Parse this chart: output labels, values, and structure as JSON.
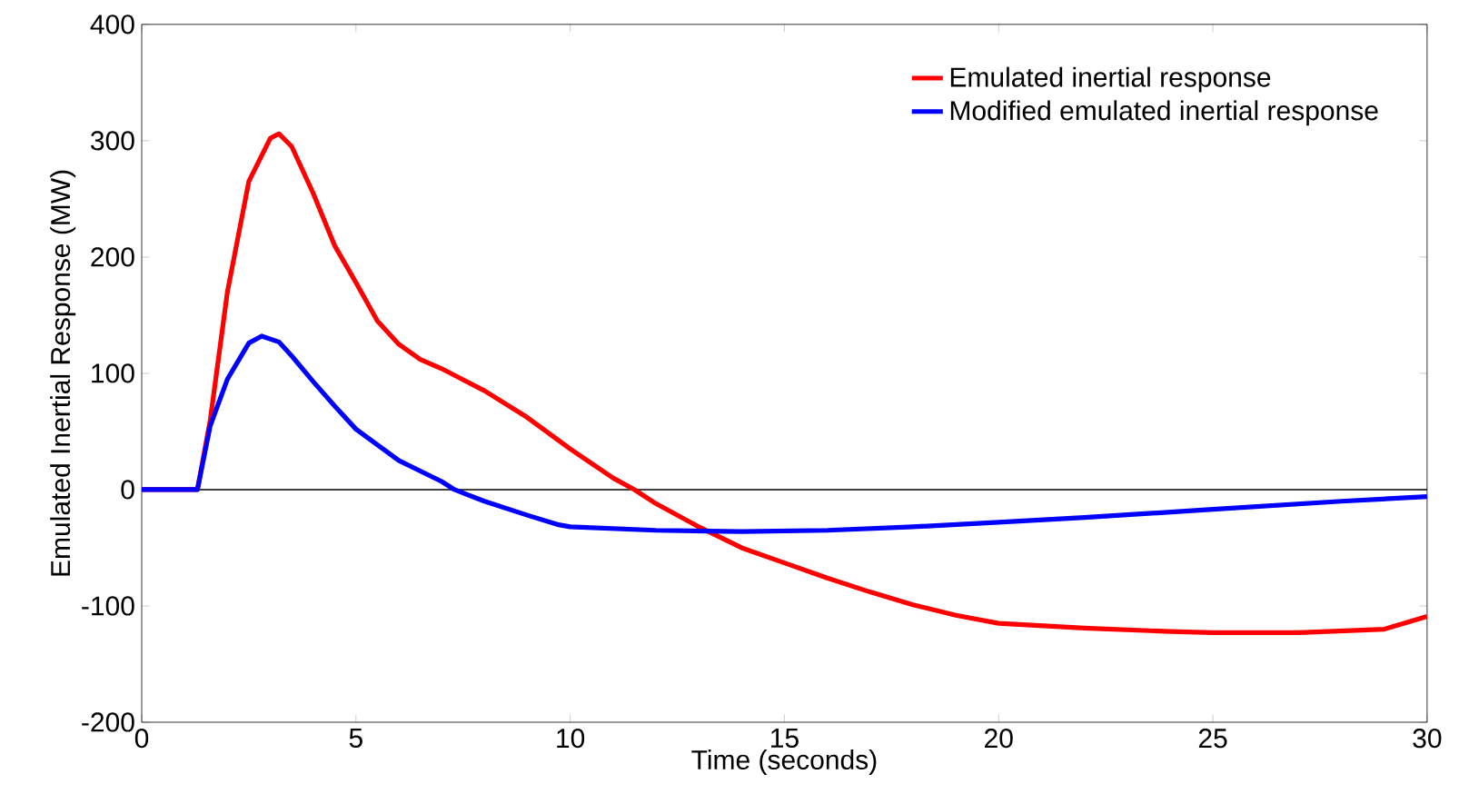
{
  "chart_data": {
    "type": "line",
    "xlabel": "Time (seconds)",
    "ylabel": "Emulated Inertial Response (MW)",
    "xlim": [
      0,
      30
    ],
    "ylim": [
      -200,
      400
    ],
    "xticks": [
      0,
      5,
      10,
      15,
      20,
      25,
      30
    ],
    "yticks": [
      -200,
      -100,
      0,
      100,
      200,
      300,
      400
    ],
    "grid": false,
    "legend": "top right",
    "line_style": "solid",
    "marker": "none",
    "ref_lines": [
      {
        "axis": "y",
        "value": 0,
        "color": "#000000"
      }
    ],
    "series": [
      {
        "name": "Emulated inertial response",
        "color": "#ff0000",
        "x": [
          0,
          1.3,
          1.6,
          2.0,
          2.5,
          3.0,
          3.2,
          3.5,
          4.0,
          4.5,
          5.0,
          5.5,
          6.0,
          6.5,
          7.0,
          8.0,
          9.0,
          10.0,
          11.0,
          11.5,
          12.0,
          13.0,
          14.0,
          15.0,
          16.0,
          17.0,
          18.0,
          19.0,
          20.0,
          22.0,
          24.0,
          25.0,
          27.0,
          29.0,
          30.0
        ],
        "values": [
          0,
          0,
          60,
          170,
          265,
          302,
          306,
          295,
          255,
          210,
          178,
          145,
          125,
          112,
          104,
          85,
          62,
          35,
          10,
          0,
          -12,
          -32,
          -50,
          -63,
          -76,
          -88,
          -99,
          -108,
          -115,
          -119,
          -122,
          -123,
          -123,
          -120,
          -109
        ]
      },
      {
        "name": "Modified emulated inertial response",
        "color": "#0000ff",
        "x": [
          0,
          1.3,
          1.6,
          2.0,
          2.5,
          2.8,
          3.2,
          3.5,
          4.0,
          4.5,
          5.0,
          6.0,
          7.0,
          7.3,
          8.0,
          9.0,
          9.7,
          10.0,
          12.0,
          14.0,
          16.0,
          18.0,
          20.0,
          22.0,
          25.0,
          28.0,
          30.0
        ],
        "values": [
          0,
          0,
          55,
          95,
          126,
          132,
          127,
          115,
          93,
          72,
          52,
          25,
          7,
          0,
          -10,
          -22,
          -30,
          -32,
          -35,
          -36,
          -35,
          -32,
          -28,
          -24,
          -17,
          -10,
          -6
        ]
      }
    ]
  }
}
